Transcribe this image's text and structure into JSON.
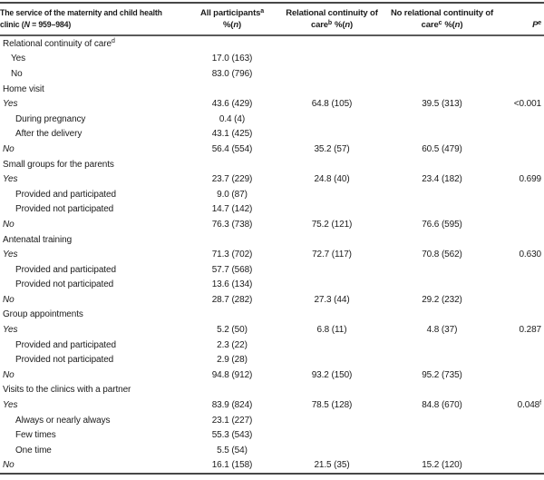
{
  "colors": {
    "text": "#1b1b1b",
    "rule_dark": "#474747",
    "rule_header": "#5a5a5a",
    "background": "#ffffff"
  },
  "table": {
    "header": {
      "col1": {
        "line1": "The service of the maternity and child health",
        "line2_pre": "clinic (",
        "line2_n": "N",
        "line2_post": " = 959–984)"
      },
      "col2": {
        "label": "All participants",
        "sup": "a"
      },
      "col3": {
        "line1": "Relational continuity of",
        "line2": "care",
        "sup": "b"
      },
      "col4": {
        "line1": "No relational continuity of",
        "line2": "care",
        "sup": "c"
      },
      "col5": {
        "label": "P",
        "sup": "e"
      },
      "pct": {
        "pre": "%(",
        "n": "n",
        "post": ")"
      }
    },
    "rows": [
      {
        "style": "section",
        "label": "Relational continuity of care",
        "label_sup": "d"
      },
      {
        "style": "sub",
        "label": "Yes",
        "c1": "17.0 (163)"
      },
      {
        "style": "sub",
        "label": "No",
        "c1": "83.0 (796)"
      },
      {
        "style": "section",
        "label": "Home visit"
      },
      {
        "style": "yesno",
        "label": "Yes",
        "c1": "43.6 (429)",
        "c2": "64.8 (105)",
        "c3": "39.5 (313)",
        "p": "<0.001"
      },
      {
        "style": "sub2",
        "label": "During pregnancy",
        "c1": "0.4 (4)"
      },
      {
        "style": "sub2",
        "label": "After the delivery",
        "c1": "43.1 (425)"
      },
      {
        "style": "yesno",
        "label": "No",
        "c1": "56.4 (554)",
        "c2": "35.2 (57)",
        "c3": "60.5 (479)"
      },
      {
        "style": "section",
        "label": "Small groups for the parents"
      },
      {
        "style": "yesno",
        "label": "Yes",
        "c1": "23.7 (229)",
        "c2": "24.8 (40)",
        "c3": "23.4 (182)",
        "p": "0.699"
      },
      {
        "style": "sub2",
        "label": "Provided and participated",
        "c1": "9.0 (87)"
      },
      {
        "style": "sub2",
        "label": "Provided not participated",
        "c1": "14.7 (142)"
      },
      {
        "style": "yesno",
        "label": "No",
        "c1": "76.3 (738)",
        "c2": "75.2 (121)",
        "c3": "76.6 (595)"
      },
      {
        "style": "section",
        "label": "Antenatal training"
      },
      {
        "style": "yesno",
        "label": "Yes",
        "c1": "71.3 (702)",
        "c2": "72.7 (117)",
        "c3": "70.8 (562)",
        "p": "0.630"
      },
      {
        "style": "sub2",
        "label": "Provided and participated",
        "c1": "57.7 (568)"
      },
      {
        "style": "sub2",
        "label": "Provided not participated",
        "c1": "13.6 (134)"
      },
      {
        "style": "yesno",
        "label": "No",
        "c1": "28.7 (282)",
        "c2": "27.3 (44)",
        "c3": "29.2 (232)"
      },
      {
        "style": "section",
        "label": "Group appointments"
      },
      {
        "style": "yesno",
        "label": "Yes",
        "c1": "5.2 (50)",
        "c2": "6.8 (11)",
        "c3": "4.8 (37)",
        "p": "0.287"
      },
      {
        "style": "sub2",
        "label": "Provided and participated",
        "c1": "2.3 (22)"
      },
      {
        "style": "sub2",
        "label": "Provided not participated",
        "c1": "2.9 (28)"
      },
      {
        "style": "yesno",
        "label": "No",
        "c1": "94.8 (912)",
        "c2": "93.2 (150)",
        "c3": "95.2 (735)"
      },
      {
        "style": "section",
        "label": "Visits to the clinics with a partner"
      },
      {
        "style": "yesno",
        "label": "Yes",
        "c1": "83.9 (824)",
        "c2": "78.5 (128)",
        "c3": "84.8 (670)",
        "p": "0.048",
        "p_sup": "f"
      },
      {
        "style": "sub2",
        "label": "Always or nearly always",
        "c1": "23.1 (227)"
      },
      {
        "style": "sub2",
        "label": "Few times",
        "c1": "55.3 (543)"
      },
      {
        "style": "sub2",
        "label": "One time",
        "c1": "5.5 (54)"
      },
      {
        "style": "yesno",
        "label": "No",
        "c1": "16.1 (158)",
        "c2": "21.5 (35)",
        "c3": "15.2 (120)"
      }
    ]
  }
}
